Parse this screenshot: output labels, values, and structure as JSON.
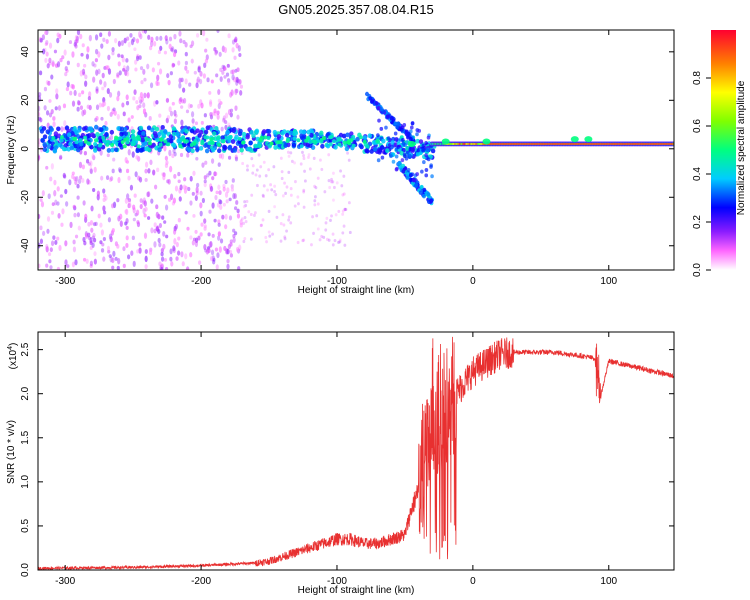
{
  "title": "GN05.2025.357.08.04.R15",
  "chart_data": [
    {
      "type": "heatmap",
      "title": "GN05.2025.357.08.04.R15",
      "xlabel": "Height of straight line (km)",
      "ylabel": "Frequency (Hz)",
      "xlim": [
        -320,
        148
      ],
      "ylim": [
        -50,
        49
      ],
      "xticks": [
        -300,
        -200,
        -100,
        0,
        100
      ],
      "yticks": [
        -40,
        -20,
        0,
        20,
        40
      ],
      "colorbar": {
        "label": "Normalized spectral amplitude",
        "range": [
          0.0,
          1.0
        ],
        "ticks": [
          0.0,
          0.2,
          0.4,
          0.6,
          0.8
        ]
      },
      "features": [
        {
          "description": "scattered noise",
          "x_range": [
            -320,
            -170
          ],
          "freq_range": [
            -50,
            49
          ],
          "amplitude": 0.05
        },
        {
          "description": "main band",
          "x_range": [
            -320,
            -30
          ],
          "center_freq": 3,
          "amplitude": 0.35
        },
        {
          "description": "stable line",
          "x_range": [
            -30,
            148
          ],
          "center_freq": 2,
          "amplitude": 0.95
        },
        {
          "description": "fan branch upper",
          "x_range": [
            -80,
            -45
          ],
          "freq_range": [
            22,
            3
          ]
        },
        {
          "description": "fan branch lower",
          "x_range": [
            -55,
            -30
          ],
          "freq_range": [
            -22,
            -5
          ]
        }
      ]
    },
    {
      "type": "line",
      "xlabel": "Height of straight line (km)",
      "ylabel": "SNR (10 * v/v)",
      "y_scale_label": "(x10",
      "y_scale_exponent": "4",
      "xlim": [
        -320,
        148
      ],
      "ylim": [
        0.0,
        2.7
      ],
      "xticks": [
        -300,
        -200,
        -100,
        0,
        100
      ],
      "yticks": [
        0.0,
        0.5,
        1.0,
        1.5,
        2.0,
        2.5
      ],
      "ytick_labels": [
        "0.0",
        "0.5",
        "1.0",
        "1.5",
        "2.0",
        "2.5"
      ],
      "series": [
        {
          "name": "SNR",
          "color": "#e83030",
          "x": [
            -320,
            -250,
            -200,
            -160,
            -150,
            -130,
            -110,
            -100,
            -90,
            -80,
            -70,
            -60,
            -50,
            -45,
            -40,
            -35,
            -30,
            -25,
            -20,
            -15,
            -10,
            -5,
            0,
            10,
            20,
            30,
            40,
            60,
            80,
            90,
            91,
            93,
            100,
            120,
            148
          ],
          "y": [
            0.02,
            0.03,
            0.05,
            0.08,
            0.1,
            0.2,
            0.3,
            0.35,
            0.35,
            0.3,
            0.3,
            0.35,
            0.4,
            0.7,
            0.9,
            1.3,
            1.5,
            1.6,
            1.8,
            1.95,
            2.05,
            2.15,
            2.25,
            2.35,
            2.45,
            2.47,
            2.47,
            2.47,
            2.43,
            2.4,
            2.6,
            1.9,
            2.37,
            2.3,
            2.2
          ]
        }
      ]
    }
  ]
}
